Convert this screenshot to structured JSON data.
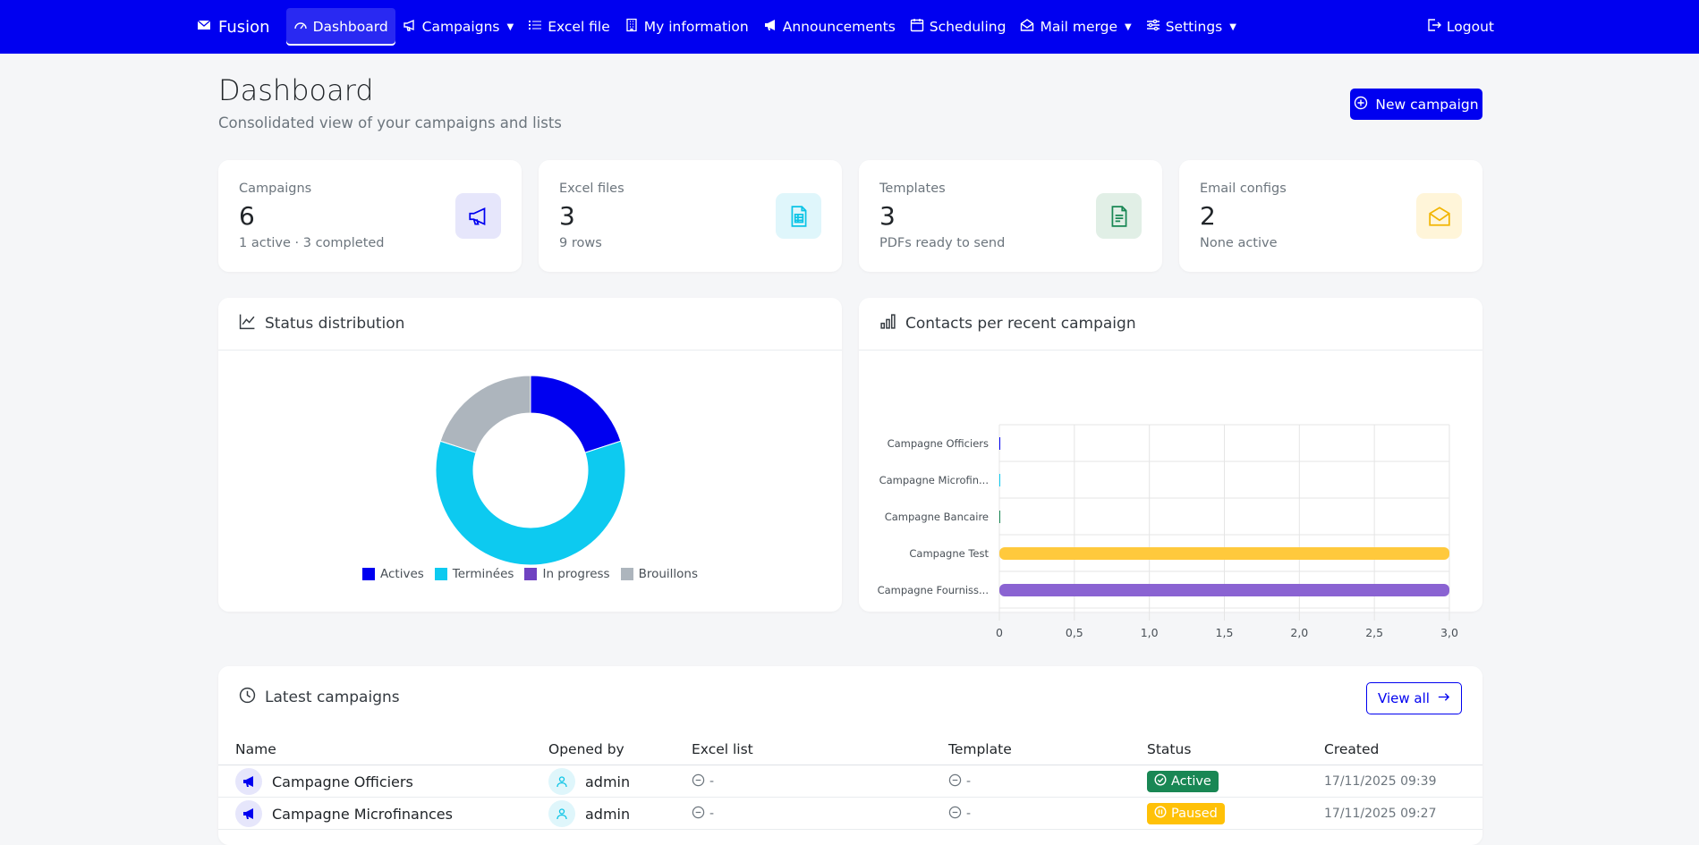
{
  "nav": {
    "brand": "Fusion",
    "items": [
      {
        "label": "Dashboard",
        "icon": "gauge-icon",
        "active": true
      },
      {
        "label": "Campaigns",
        "icon": "megaphone-icon",
        "dropdown": true
      },
      {
        "label": "Excel file",
        "icon": "list-icon"
      },
      {
        "label": "My information",
        "icon": "building-icon"
      },
      {
        "label": "Announcements",
        "icon": "megaphone-icon"
      },
      {
        "label": "Scheduling",
        "icon": "calendar-icon"
      },
      {
        "label": "Mail merge",
        "icon": "envelope-open-icon",
        "dropdown": true
      },
      {
        "label": "Settings",
        "icon": "sliders-icon",
        "dropdown": true
      }
    ],
    "logout": "Logout"
  },
  "header": {
    "title": "Dashboard",
    "subtitle": "Consolidated view of your campaigns and lists",
    "new_campaign": "New campaign"
  },
  "stats": [
    {
      "label": "Campaigns",
      "value": "6",
      "sub": "1 active · 3 completed",
      "icon": "megaphone-icon",
      "bg": "#e6e6fb",
      "fg": "#0000f0"
    },
    {
      "label": "Excel files",
      "value": "3",
      "sub": "9 rows",
      "icon": "spreadsheet-icon",
      "bg": "#dff6fb",
      "fg": "#0bc4e6"
    },
    {
      "label": "Templates",
      "value": "3",
      "sub": "PDFs ready to send",
      "icon": "document-icon",
      "bg": "#e1efe6",
      "fg": "#198754"
    },
    {
      "label": "Email configs",
      "value": "2",
      "sub": "None active",
      "icon": "envelope-icon",
      "bg": "#fff5d9",
      "fg": "#f2b500"
    }
  ],
  "status_chart": {
    "title": "Status distribution",
    "chart_data": {
      "type": "pie",
      "labels": [
        "Actives",
        "Terminées",
        "In progress",
        "Brouillons"
      ],
      "values": [
        1,
        3,
        0,
        1
      ],
      "colors": [
        "#0000f0",
        "#0dcaf0",
        "#6f42c1",
        "#adb5bd"
      ]
    }
  },
  "contacts_chart": {
    "title": "Contacts per recent campaign",
    "chart_data": {
      "type": "bar",
      "orientation": "horizontal",
      "categories": [
        "Campagne Officiers",
        "Campagne Microfin...",
        "Campagne Bancaire",
        "Campagne Test",
        "Campagne Fourniss..."
      ],
      "values": [
        0,
        0,
        0,
        3,
        3
      ],
      "colors": [
        "#0000f0",
        "#0dcaf0",
        "#198754",
        "#ffc93c",
        "#8a63d2"
      ],
      "xlim": [
        0,
        3
      ],
      "xticks": [
        "0",
        "0,5",
        "1,0",
        "1,5",
        "2,0",
        "2,5",
        "3,0"
      ],
      "grid": true
    }
  },
  "latest": {
    "title": "Latest campaigns",
    "view_all": "View all",
    "columns": [
      "Name",
      "Opened by",
      "Excel list",
      "Template",
      "Status",
      "Created"
    ],
    "rows": [
      {
        "name": "Campagne Officiers",
        "opened_by": "admin",
        "excel": "-",
        "template": "-",
        "status": "Active",
        "status_color": "#198754",
        "created": "17/11/2025 09:39"
      },
      {
        "name": "Campagne Microfinances",
        "opened_by": "admin",
        "excel": "-",
        "template": "-",
        "status": "Paused",
        "status_color": "#ffc107",
        "created": "17/11/2025 09:27"
      }
    ]
  }
}
